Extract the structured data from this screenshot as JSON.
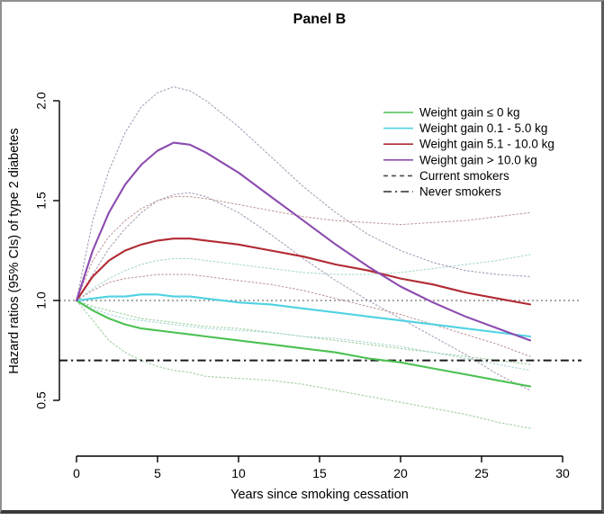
{
  "chart_data": {
    "type": "line",
    "title": "Panel B",
    "xlabel": "Years since smoking cessation",
    "ylabel": "Hazard ratios (95% CIs) of type 2 diabetes",
    "xlim": [
      0,
      30
    ],
    "ylim": [
      0.5,
      2.0
    ],
    "grid": false,
    "x_tick_values": [
      0,
      5,
      10,
      15,
      20,
      25,
      30
    ],
    "x_tick_labels": [
      "0",
      "5",
      "10",
      "15",
      "20",
      "25",
      "30"
    ],
    "y_tick_values": [
      0.5,
      1.0,
      1.5,
      2.0
    ],
    "y_tick_labels": [
      "0.5",
      "1.0",
      "1.5",
      "2.0"
    ],
    "legend_position": "upper right inside plot",
    "x": [
      0,
      1,
      2,
      3,
      4,
      5,
      6,
      7,
      8,
      10,
      12,
      14,
      16,
      18,
      20,
      22,
      24,
      26,
      28
    ],
    "series": [
      {
        "id": "weight-gain-le-0kg",
        "name": "Weight gain ≤ 0 kg",
        "color": "#4cc152",
        "ci_color": "#9fce9f",
        "y": [
          1.0,
          0.95,
          0.91,
          0.88,
          0.86,
          0.85,
          0.84,
          0.83,
          0.82,
          0.8,
          0.78,
          0.76,
          0.74,
          0.71,
          0.69,
          0.66,
          0.63,
          0.6,
          0.57
        ],
        "ci_upper": [
          1.0,
          0.97,
          0.95,
          0.93,
          0.91,
          0.9,
          0.89,
          0.88,
          0.87,
          0.86,
          0.84,
          0.82,
          0.8,
          0.78,
          0.76,
          0.74,
          0.72,
          0.7,
          0.68
        ],
        "ci_lower": [
          1.0,
          0.9,
          0.8,
          0.74,
          0.7,
          0.67,
          0.65,
          0.64,
          0.62,
          0.61,
          0.6,
          0.58,
          0.55,
          0.52,
          0.49,
          0.46,
          0.43,
          0.39,
          0.36
        ]
      },
      {
        "id": "weight-gain-0.1-5.0kg",
        "name": "Weight gain 0.1 - 5.0 kg",
        "color": "#4fd2e2",
        "ci_color": "#a5d8d2",
        "y": [
          1.0,
          1.01,
          1.02,
          1.02,
          1.03,
          1.03,
          1.02,
          1.02,
          1.01,
          0.99,
          0.98,
          0.96,
          0.94,
          0.92,
          0.9,
          0.88,
          0.86,
          0.84,
          0.82
        ],
        "ci_upper": [
          1.0,
          1.06,
          1.11,
          1.15,
          1.18,
          1.2,
          1.21,
          1.21,
          1.2,
          1.18,
          1.16,
          1.14,
          1.13,
          1.13,
          1.14,
          1.16,
          1.18,
          1.2,
          1.23
        ],
        "ci_lower": [
          1.0,
          0.96,
          0.93,
          0.91,
          0.9,
          0.89,
          0.88,
          0.87,
          0.86,
          0.85,
          0.84,
          0.82,
          0.81,
          0.79,
          0.77,
          0.74,
          0.71,
          0.68,
          0.65
        ]
      },
      {
        "id": "weight-gain-5.1-10.0kg",
        "name": "Weight gain 5.1 - 10.0 kg",
        "color": "#b22a33",
        "ci_color": "#c49a9a",
        "y": [
          1.0,
          1.12,
          1.2,
          1.25,
          1.28,
          1.3,
          1.31,
          1.31,
          1.3,
          1.28,
          1.25,
          1.22,
          1.18,
          1.15,
          1.11,
          1.08,
          1.04,
          1.01,
          0.98
        ],
        "ci_upper": [
          1.0,
          1.2,
          1.32,
          1.4,
          1.46,
          1.5,
          1.52,
          1.52,
          1.51,
          1.48,
          1.45,
          1.42,
          1.4,
          1.39,
          1.38,
          1.39,
          1.4,
          1.42,
          1.44
        ],
        "ci_lower": [
          1.0,
          1.05,
          1.09,
          1.11,
          1.12,
          1.13,
          1.13,
          1.13,
          1.12,
          1.1,
          1.08,
          1.05,
          1.01,
          0.97,
          0.93,
          0.88,
          0.83,
          0.78,
          0.72
        ]
      },
      {
        "id": "weight-gain-gt-10.0kg",
        "name": "Weight gain > 10.0 kg",
        "color": "#8c4bb0",
        "ci_color": "#ab9cba",
        "y": [
          1.0,
          1.25,
          1.44,
          1.58,
          1.68,
          1.75,
          1.79,
          1.78,
          1.74,
          1.64,
          1.52,
          1.4,
          1.28,
          1.17,
          1.07,
          0.99,
          0.92,
          0.86,
          0.8
        ],
        "ci_upper": [
          1.0,
          1.4,
          1.65,
          1.84,
          1.97,
          2.04,
          2.07,
          2.05,
          2.0,
          1.87,
          1.72,
          1.57,
          1.44,
          1.33,
          1.25,
          1.19,
          1.15,
          1.13,
          1.12
        ],
        "ci_lower": [
          1.0,
          1.13,
          1.26,
          1.36,
          1.44,
          1.5,
          1.53,
          1.54,
          1.52,
          1.44,
          1.33,
          1.21,
          1.1,
          1.0,
          0.91,
          0.82,
          0.73,
          0.63,
          0.55
        ]
      }
    ],
    "reference_lines": [
      {
        "id": "current-smokers",
        "label": "Current smokers",
        "value": 1.0,
        "color": "#8c8c8c",
        "style": "dotted",
        "width": 1.6
      },
      {
        "id": "never-smokers",
        "label": "Never smokers",
        "value": 0.7,
        "color": "#1a1a1a",
        "style": "dashdot",
        "width": 2.0
      }
    ],
    "legend_entries": [
      {
        "label": "Weight gain ≤ 0 kg",
        "color": "#4cc152",
        "style": "solid",
        "width": 1.6
      },
      {
        "label": "Weight gain 0.1 - 5.0 kg",
        "color": "#4fd2e2",
        "style": "solid",
        "width": 1.6
      },
      {
        "label": "Weight gain 5.1 - 10.0 kg",
        "color": "#b22a33",
        "style": "solid",
        "width": 1.6
      },
      {
        "label": "Weight gain > 10.0 kg",
        "color": "#8c4bb0",
        "style": "solid",
        "width": 1.6
      },
      {
        "label": "Current smokers",
        "color": "#4d4d4d",
        "style": "dashed",
        "width": 1.6
      },
      {
        "label": "Never smokers",
        "color": "#2b2b2b",
        "style": "dashdot",
        "width": 1.6
      }
    ]
  }
}
